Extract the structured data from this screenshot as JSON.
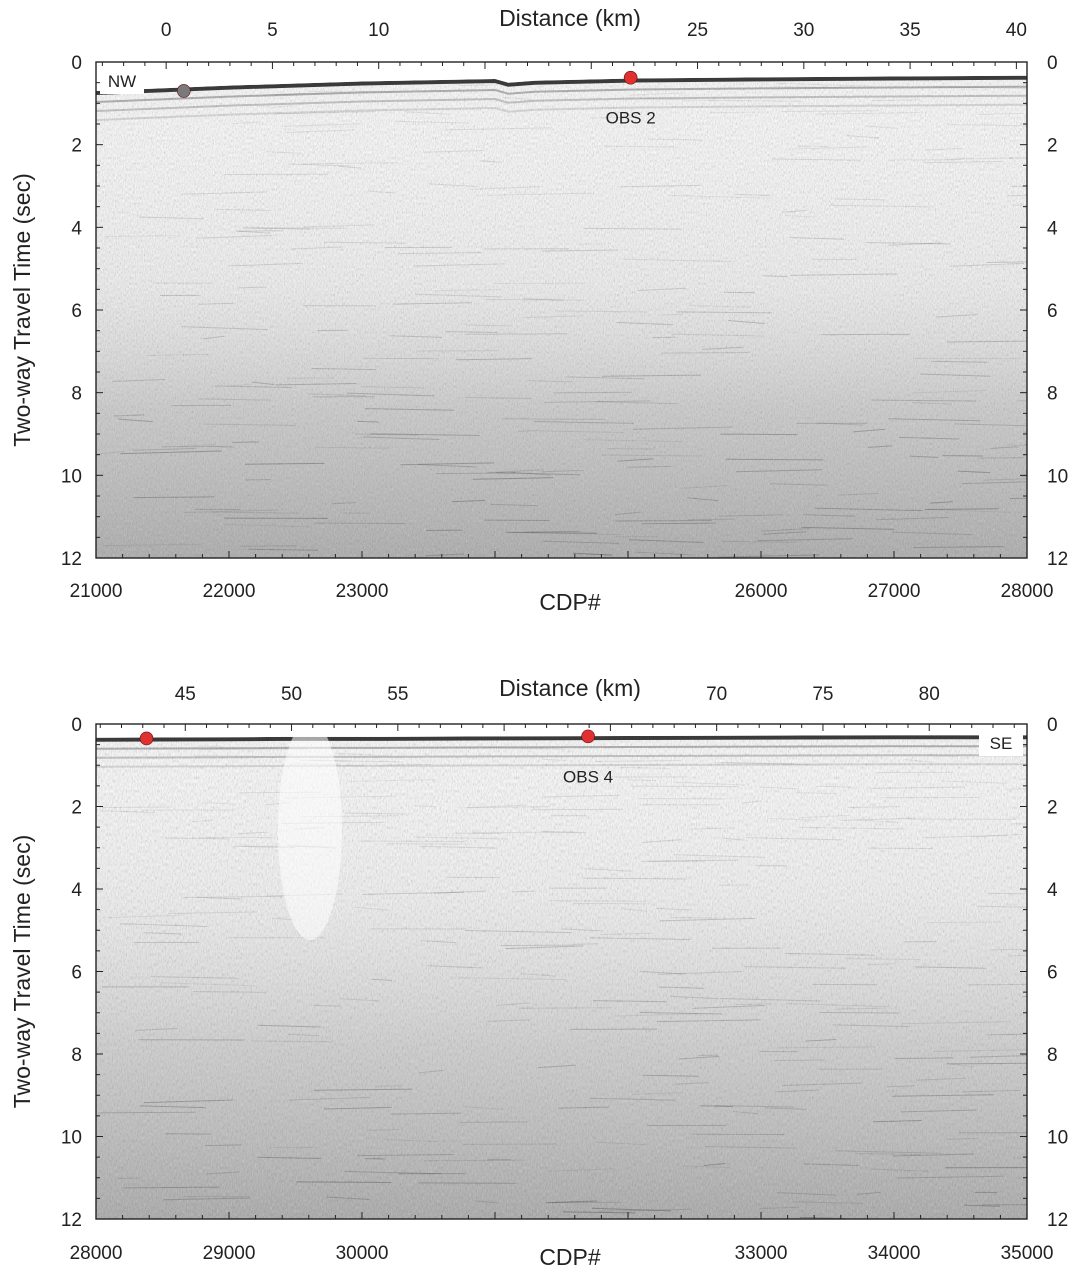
{
  "chart_data": [
    {
      "type": "seismic-section",
      "panel": "top",
      "top_axis": {
        "label": "Distance (km)",
        "ticks": [
          "0",
          "5",
          "10",
          "25",
          "30",
          "35",
          "40"
        ],
        "values": [
          0,
          5,
          10,
          25,
          30,
          35,
          40
        ],
        "range": [
          -3.3,
          40.5
        ]
      },
      "bottom_axis": {
        "label": "CDP#",
        "ticks": [
          "21000",
          "22000",
          "23000",
          "26000",
          "27000",
          "28000"
        ],
        "values": [
          21000,
          22000,
          23000,
          26000,
          27000,
          28000
        ],
        "range": [
          21000,
          28000
        ]
      },
      "left_axis": {
        "label": "Two-way Travel Time (sec)",
        "ticks": [
          "0",
          "2",
          "4",
          "6",
          "8",
          "10",
          "12"
        ],
        "range": [
          0,
          12
        ]
      },
      "right_axis": {
        "ticks": [
          "0",
          "2",
          "4",
          "6",
          "8",
          "10",
          "12"
        ],
        "range": [
          0,
          12
        ]
      },
      "markers": [
        {
          "type": "obs",
          "label": "",
          "cdp": 21660,
          "time": 0.7,
          "color": "#7a7a7a"
        },
        {
          "type": "obs",
          "label": "OBS 2",
          "cdp": 25020,
          "time": 0.38,
          "color": "#e03030"
        }
      ],
      "corner_label": {
        "text": "NW",
        "position": "top-left"
      },
      "seafloor": {
        "cdp": [
          21000,
          22000,
          23000,
          24000,
          24100,
          24300,
          25000,
          26000,
          27000,
          28000
        ],
        "time": [
          0.75,
          0.62,
          0.52,
          0.46,
          0.55,
          0.5,
          0.45,
          0.42,
          0.4,
          0.38
        ]
      }
    },
    {
      "type": "seismic-section",
      "panel": "bottom",
      "top_axis": {
        "label": "Distance (km)",
        "ticks": [
          "45",
          "50",
          "55",
          "70",
          "75",
          "80"
        ],
        "values": [
          45,
          50,
          55,
          70,
          75,
          80
        ],
        "range": [
          40.8,
          84.6
        ]
      },
      "bottom_axis": {
        "label": "CDP#",
        "ticks": [
          "28000",
          "29000",
          "30000",
          "33000",
          "34000",
          "35000"
        ],
        "values": [
          28000,
          29000,
          30000,
          33000,
          34000,
          35000
        ],
        "range": [
          28000,
          35000
        ]
      },
      "left_axis": {
        "label": "Two-way Travel Time (sec)",
        "ticks": [
          "0",
          "2",
          "4",
          "6",
          "8",
          "10",
          "12"
        ],
        "range": [
          0,
          12
        ]
      },
      "right_axis": {
        "ticks": [
          "0",
          "2",
          "4",
          "6",
          "8",
          "10",
          "12"
        ],
        "range": [
          0,
          12
        ]
      },
      "markers": [
        {
          "type": "obs",
          "label": "",
          "cdp": 28380,
          "time": 0.35,
          "color": "#e03030"
        },
        {
          "type": "obs",
          "label": "OBS 4",
          "cdp": 31700,
          "time": 0.3,
          "color": "#e03030"
        }
      ],
      "corner_label": {
        "text": "SE",
        "position": "top-right"
      },
      "seafloor": {
        "cdp": [
          28000,
          29000,
          29400,
          30000,
          31000,
          32000,
          33000,
          34000,
          35000
        ],
        "time": [
          0.38,
          0.37,
          0.36,
          0.36,
          0.35,
          0.34,
          0.33,
          0.32,
          0.32
        ]
      }
    }
  ]
}
